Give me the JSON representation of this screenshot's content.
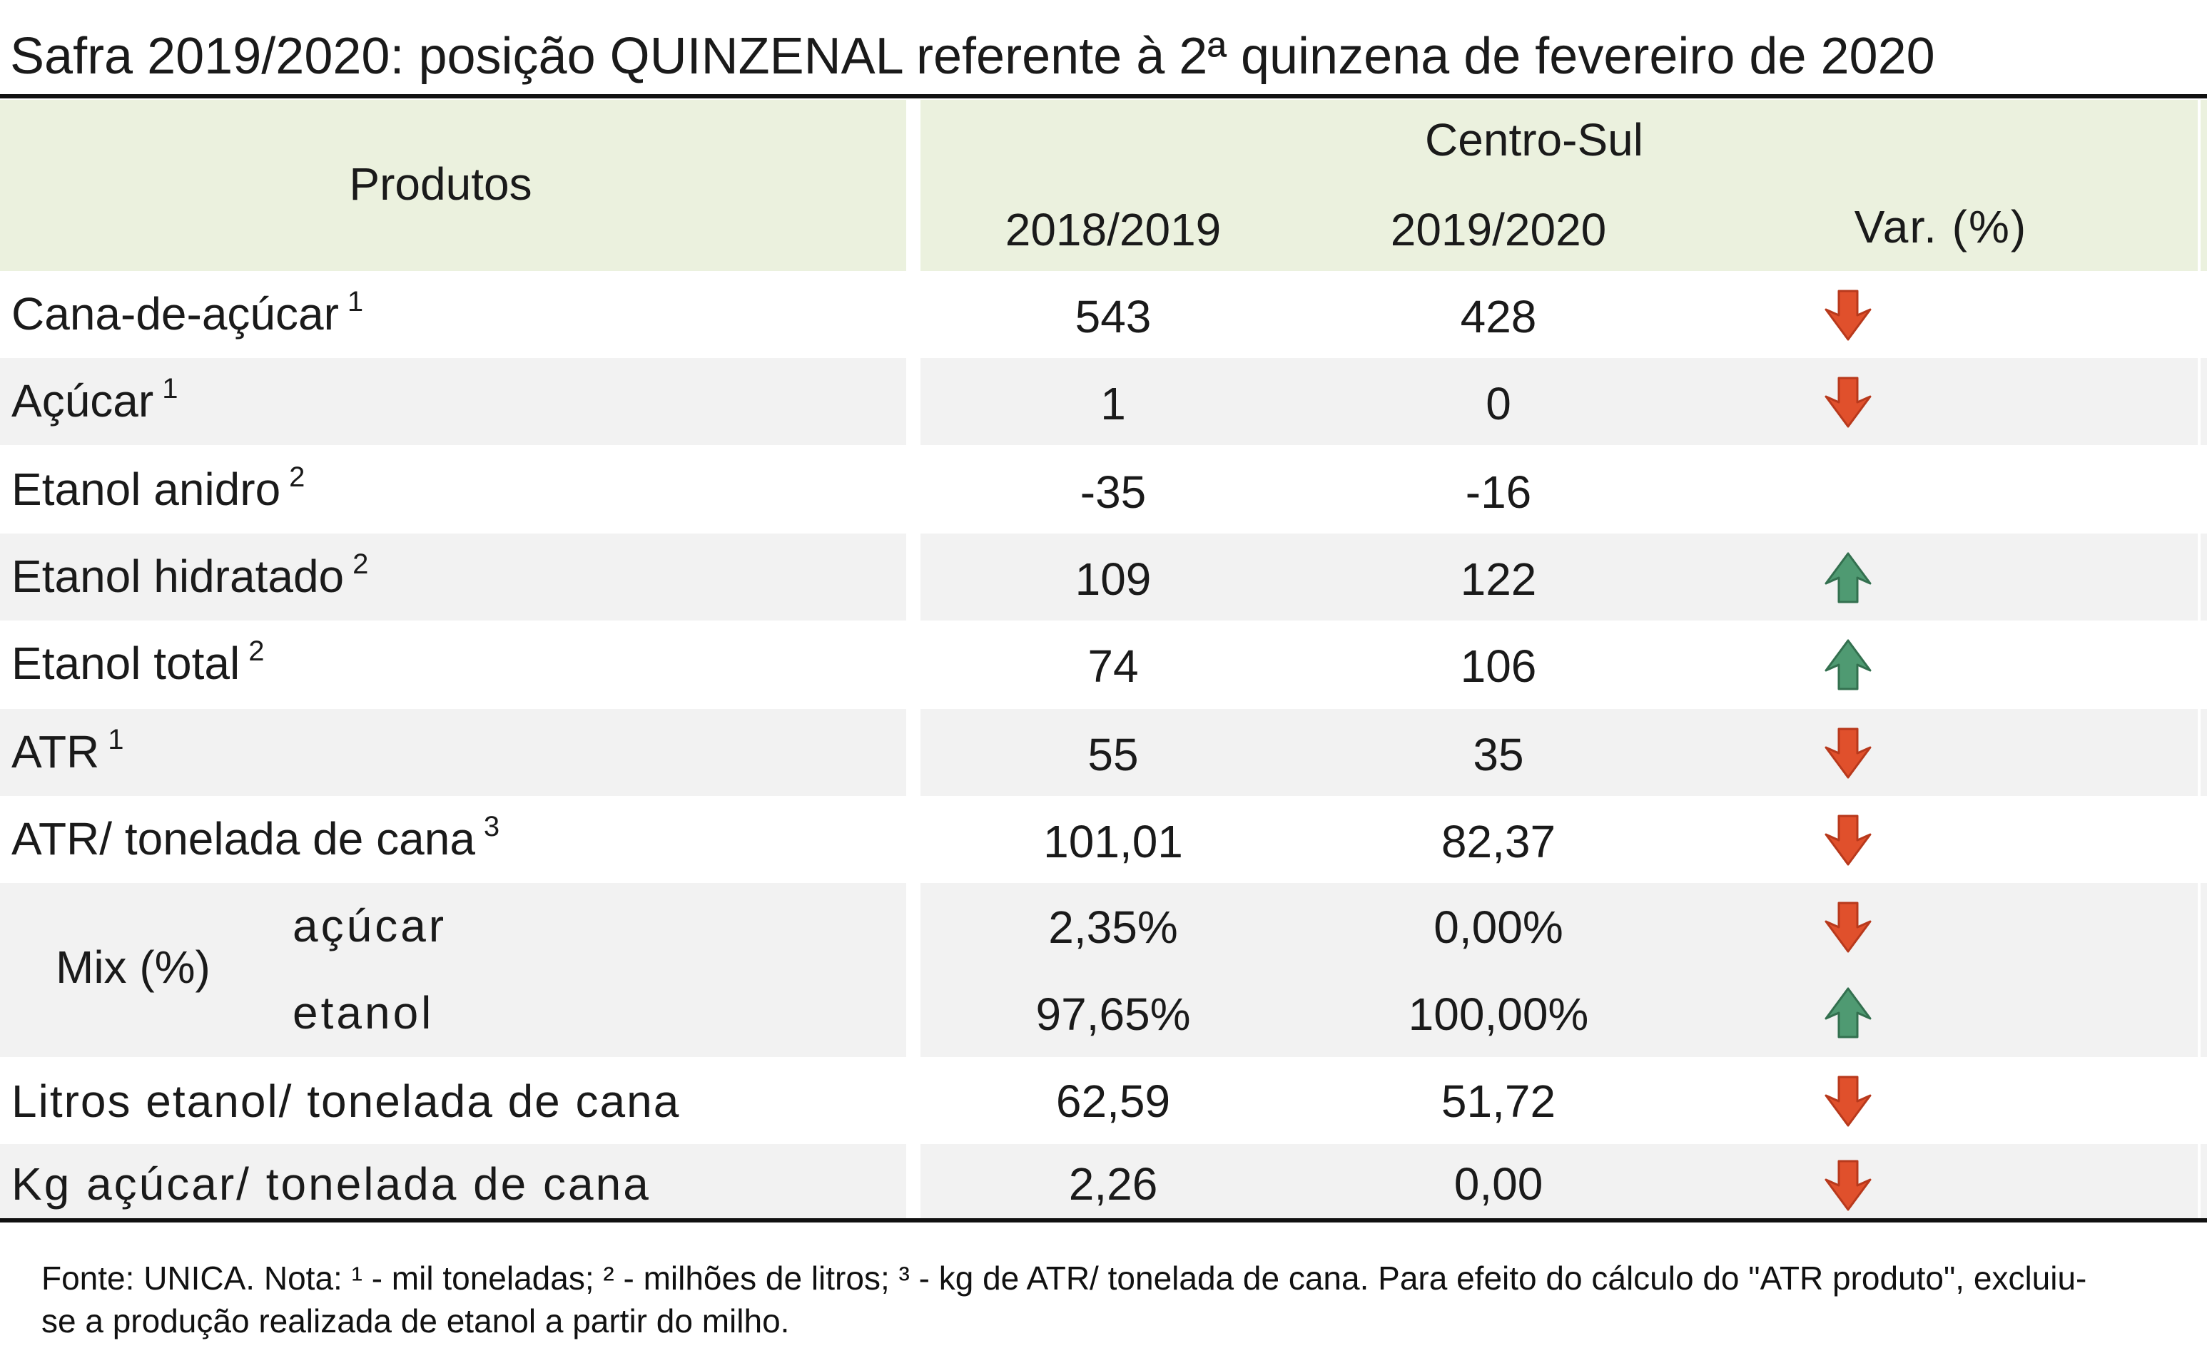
{
  "title": "Safra 2019/2020: posição QUINZENAL referente à 2ª quinzena de fevereiro de 2020",
  "header": {
    "produtos": "Produtos",
    "region": "Centro-Sul",
    "col_2018": "2018/2019",
    "col_2019": "2019/2020",
    "col_var": "Var. (%)"
  },
  "rows": [
    {
      "label": "Cana-de-açúcar",
      "sup": "1",
      "v2018": "543",
      "v2019": "428",
      "trend": "down"
    },
    {
      "label": "Açúcar",
      "sup": "1",
      "v2018": "1",
      "v2019": "0",
      "trend": "down"
    },
    {
      "label": "Etanol anidro",
      "sup": "2",
      "v2018": "-35",
      "v2019": "-16",
      "trend": "none"
    },
    {
      "label": "Etanol hidratado",
      "sup": "2",
      "v2018": "109",
      "v2019": "122",
      "trend": "up"
    },
    {
      "label": "Etanol total",
      "sup": "2",
      "v2018": "74",
      "v2019": "106",
      "trend": "up"
    },
    {
      "label": "ATR",
      "sup": "1",
      "v2018": "55",
      "v2019": "35",
      "trend": "down"
    },
    {
      "label": "ATR/ tonelada de cana",
      "sup": "3",
      "v2018": "101,01",
      "v2019": "82,37",
      "trend": "down"
    }
  ],
  "mix": {
    "label": "Mix (%)",
    "acucar": {
      "label": "açúcar",
      "v2018": "2,35%",
      "v2019": "0,00%",
      "trend": "down"
    },
    "etanol": {
      "label": "etanol",
      "v2018": "97,65%",
      "v2019": "100,00%",
      "trend": "up"
    }
  },
  "rows_after": [
    {
      "label": "Litros etanol/ tonelada de cana",
      "v2018": "62,59",
      "v2019": "51,72",
      "trend": "down"
    },
    {
      "label": "Kg açúcar/ tonelada de cana",
      "v2018": "2,26",
      "v2019": "0,00",
      "trend": "down"
    }
  ],
  "colors": {
    "down": "#e0502c",
    "up": "#4f9a72",
    "header_fill": "#ebf1de",
    "band_fill": "#f2f2f2"
  },
  "icons": {
    "down": "arrow-down-icon",
    "up": "arrow-up-icon"
  },
  "footnote": "Fonte: UNICA. Nota: ¹ - mil toneladas; ² - milhões de litros; ³ - kg de ATR/ tonelada de cana. Para efeito do cálculo do \"ATR produto\", excluiu-se a produção realizada de etanol a partir do milho."
}
